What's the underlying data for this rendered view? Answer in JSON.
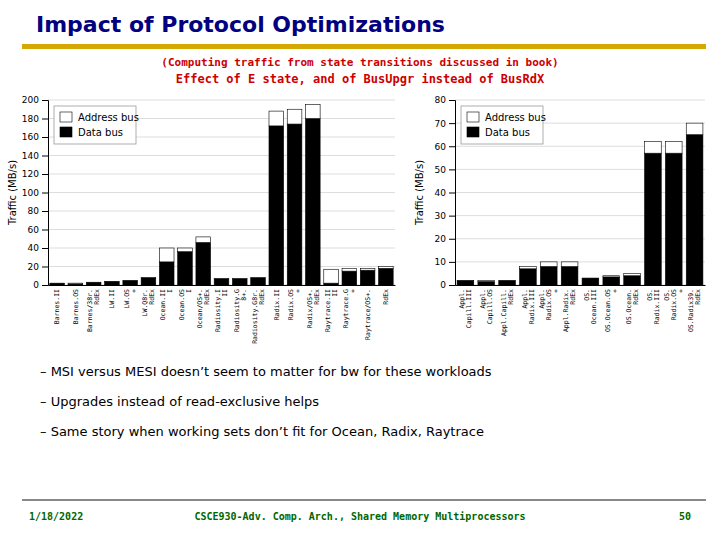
{
  "title": "Impact of Protocol Optimizations",
  "subtitle": [
    "(Computing traffic from state transitions discussed in book)",
    "Effect of E state, and of BusUpgr instead of BusRdX"
  ],
  "annotations": [
    "–  MSI versus MESI doesn’t seem to matter for bw for these workloads",
    "–  Upgrades instead of read-exclusive helps",
    "–  Same story when working sets don’t fit for Ocean, Radix, Raytrace"
  ],
  "footer": [
    "1/18/2022",
    "CSCE930-Adv. Comp. Arch., Shared Memory Multiprocessors",
    "50"
  ],
  "chart_data": [
    {
      "type": "bar",
      "stacked": true,
      "y_label": "Traffic (MB/s)",
      "categories": [
        "Barnes.II",
        "Barnes.OS",
        "Barnes/38r.\nRdEx",
        "LW.II",
        "LW.OS\n+",
        "LW.Q8r.\nRdEx",
        "Ocean.II\nI",
        "Ocean.OS\nI",
        "Ocean/OS+.\nRdEx",
        "Radiosity.I\nII",
        "Radiosity.G\n8+.",
        "Radiosity.G8r.\nRdEx",
        "Radix.II",
        "Radix.OS\n+",
        "Radix/OS+.\nRdEx",
        "Raytrace.II\nII",
        "Raytrace.G\n+",
        "Raytrace/OS+.",
        "RdEx"
      ],
      "series": [
        {
          "name": "Data bus",
          "color": "#000000",
          "values": [
            2,
            1,
            3,
            4,
            5,
            8,
            25,
            36,
            46,
            7,
            7,
            8,
            172,
            174,
            180,
            2,
            15,
            16,
            18
          ]
        },
        {
          "name": "Address bus",
          "color": "#ffffff",
          "values": [
            0,
            1,
            0,
            0,
            0,
            0,
            15,
            4,
            6,
            0,
            0,
            0,
            16,
            16,
            15,
            15,
            3,
            2,
            2
          ]
        }
      ],
      "ylim": [
        0,
        200
      ],
      "yticks": [
        0,
        20,
        40,
        60,
        80,
        100,
        120,
        140,
        160,
        180,
        200
      ],
      "grid": true,
      "legend": "upper left"
    },
    {
      "type": "bar",
      "stacked": true,
      "y_label": "Traffic (MB/s)",
      "categories": [
        "Appl.\nCapill.III",
        "Appl.\nCapill.OS",
        "Appl.Capill.\nRdEx",
        "Appl.\nRadix.III",
        "Appl.\nRadix.OS\n+",
        "Appl.Radix.\nRdEx",
        "OS.\nOcean.III",
        "OS.Ocean.OS\n+",
        "OS.Ocean.\nRdEx",
        "OS.\nRadix.III",
        "OS.\nRadix.OS\n+",
        "OS.Radix39.\nRdEx"
      ],
      "series": [
        {
          "name": "Data bus",
          "color": "#000000",
          "values": [
            2,
            1.5,
            2,
            7,
            8,
            8,
            3,
            3.5,
            4,
            57,
            57,
            65
          ]
        },
        {
          "name": "Address bus",
          "color": "#ffffff",
          "values": [
            0,
            0.5,
            0,
            1,
            2,
            2,
            0,
            0.5,
            1,
            5,
            5,
            5
          ]
        }
      ],
      "ylim": [
        0,
        80
      ],
      "yticks": [
        0,
        10,
        20,
        30,
        40,
        50,
        60,
        70,
        80
      ],
      "grid": true,
      "legend": "upper left"
    }
  ]
}
